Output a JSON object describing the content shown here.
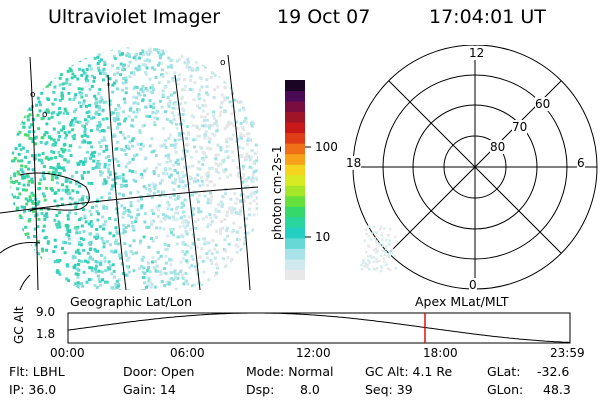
{
  "header": {
    "instrument": "Ultraviolet Imager",
    "date": "19 Oct 07",
    "time": "17:04:01 UT"
  },
  "colorbar": {
    "label": "photon cm-2s-1",
    "ticks": [
      "100",
      "10"
    ],
    "colors": [
      "#e8e8e8",
      "#cfe9ee",
      "#a8e2ea",
      "#66d9d6",
      "#22cfc2",
      "#2ad5a0",
      "#35d86a",
      "#66e03a",
      "#a6e629",
      "#d7ea23",
      "#f4d41e",
      "#f7a21a",
      "#f07018",
      "#e03c17",
      "#c81818",
      "#a01428",
      "#7a0d40",
      "#4a0a55",
      "#1a0624"
    ]
  },
  "polar_plot": {
    "mlt_labels": [
      "12",
      "18",
      "6",
      "0"
    ],
    "lat_labels": [
      "60",
      "70",
      "80"
    ]
  },
  "timeline": {
    "y_axis_label": "GC Alt",
    "y_ticks": [
      "9.0",
      "1.8"
    ],
    "left_title": "Geographic Lat/Lon",
    "right_title": "Apex MLat/MLT",
    "x_ticks": [
      "00:00",
      "06:00",
      "12:00",
      "18:00",
      "23:59"
    ],
    "marker_hour": 17.067,
    "marker_color": "#e00000"
  },
  "footer": {
    "filter": "Flt: LBHL",
    "ip": "IP: 36.0",
    "door": "Door: Open",
    "gain": "Gain: 14",
    "mode": "Mode: Normal",
    "dsp_label": "Dsp:",
    "dsp_value": "8.0",
    "gc_alt": "GC Alt: 4.1 Re",
    "seq": "Seq: 39",
    "glat_label": "GLat:",
    "glat_value": "-32.6",
    "glon_label": "GLon:",
    "glon_value": "48.3"
  }
}
